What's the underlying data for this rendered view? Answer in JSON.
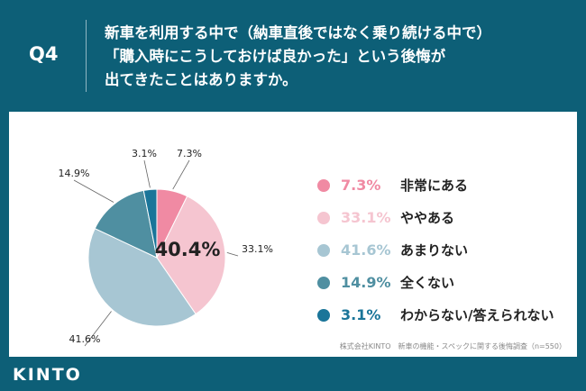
{
  "question": {
    "label": "Q4",
    "lines": [
      "新車を利用する中で（納車直後ではなく乗り続ける中で）",
      "「購入時にこうしておけば良かった」という後悔が",
      "出てきたことはありますか。"
    ]
  },
  "chart_data": {
    "type": "pie",
    "slices": [
      {
        "label": "非常にある",
        "value": 7.3,
        "pct_text": "7.3%",
        "outer_label": "7.3%",
        "color": "#f08aa3"
      },
      {
        "label": "ややある",
        "value": 33.1,
        "pct_text": "33.1%",
        "outer_label": "33.1%",
        "color": "#f5c5d0"
      },
      {
        "label": "あまりない",
        "value": 41.6,
        "pct_text": "41.6%",
        "outer_label": "41.6%",
        "color": "#a7c6d3"
      },
      {
        "label": "全くない",
        "value": 14.9,
        "pct_text": "14.9%",
        "outer_label": "14.9%",
        "color": "#4f8fa1"
      },
      {
        "label": "わからない/答えられない",
        "value": 3.1,
        "pct_text": "3.1%",
        "outer_label": "3.1%",
        "color": "#1a7599"
      }
    ],
    "center_label": "40.4%",
    "legend_position": "right"
  },
  "source": "株式会社KINTO　新車の機能・スペックに関する後悔調査（n=550）",
  "logo": "KINTO"
}
